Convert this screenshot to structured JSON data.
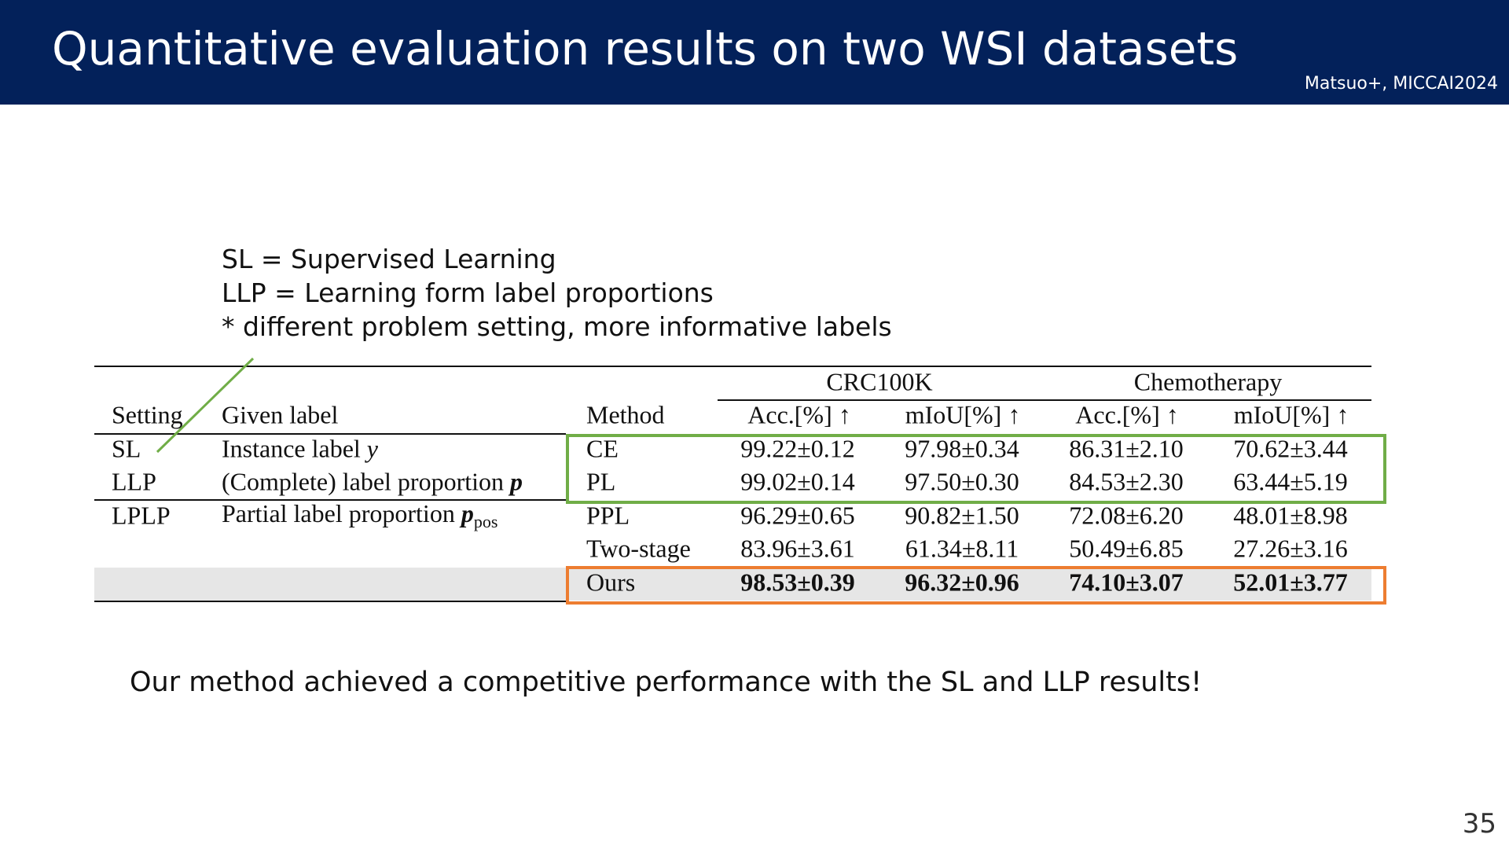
{
  "header": {
    "title": "Quantitative evaluation results on two WSI datasets",
    "citation": "Matsuo+, MICCAI2024"
  },
  "notes": [
    "SL = Supervised Learning",
    "LLP = Learning form label proportions",
    "* different problem setting, more informative labels"
  ],
  "table": {
    "group_headers": [
      "CRC100K",
      "Chemotherapy"
    ],
    "columns": [
      "Setting",
      "Given label",
      "Method",
      "Acc.[%] ↑",
      "mIoU[%] ↑",
      "Acc.[%] ↑",
      "mIoU[%] ↑"
    ],
    "rows": [
      {
        "setting": "SL",
        "given": "Instance label",
        "given_sym": "y",
        "given_sub": "",
        "method": "CE",
        "values": [
          "99.22±0.12",
          "97.98±0.34",
          "86.31±2.10",
          "70.62±3.44"
        ]
      },
      {
        "setting": "LLP",
        "given": "(Complete) label proportion",
        "given_sym": "p",
        "given_sub": "",
        "method": "PL",
        "values": [
          "99.02±0.14",
          "97.50±0.30",
          "84.53±2.30",
          "63.44±5.19"
        ]
      },
      {
        "setting": "LPLP",
        "given": "Partial label proportion",
        "given_sym": "p",
        "given_sub": "pos",
        "method": "PPL",
        "values": [
          "96.29±0.65",
          "90.82±1.50",
          "72.08±6.20",
          "48.01±8.98"
        ]
      },
      {
        "setting": "",
        "given": "",
        "given_sym": "",
        "given_sub": "",
        "method": "Two-stage",
        "values": [
          "83.96±3.61",
          "61.34±8.11",
          "50.49±6.85",
          "27.26±3.16"
        ]
      },
      {
        "setting": "",
        "given": "",
        "given_sym": "",
        "given_sub": "",
        "method": "Ours",
        "values": [
          "98.53±0.39",
          "96.32±0.96",
          "74.10±3.07",
          "52.01±3.77"
        ]
      }
    ],
    "highlight_colors": {
      "sl_llp_box": "#70ad47",
      "ours_box": "#ed7d31",
      "ours_row_bg": "#e6e6e6"
    }
  },
  "conclusion": "Our method achieved a competitive performance with the SL and LLP results!",
  "page_number": "35"
}
